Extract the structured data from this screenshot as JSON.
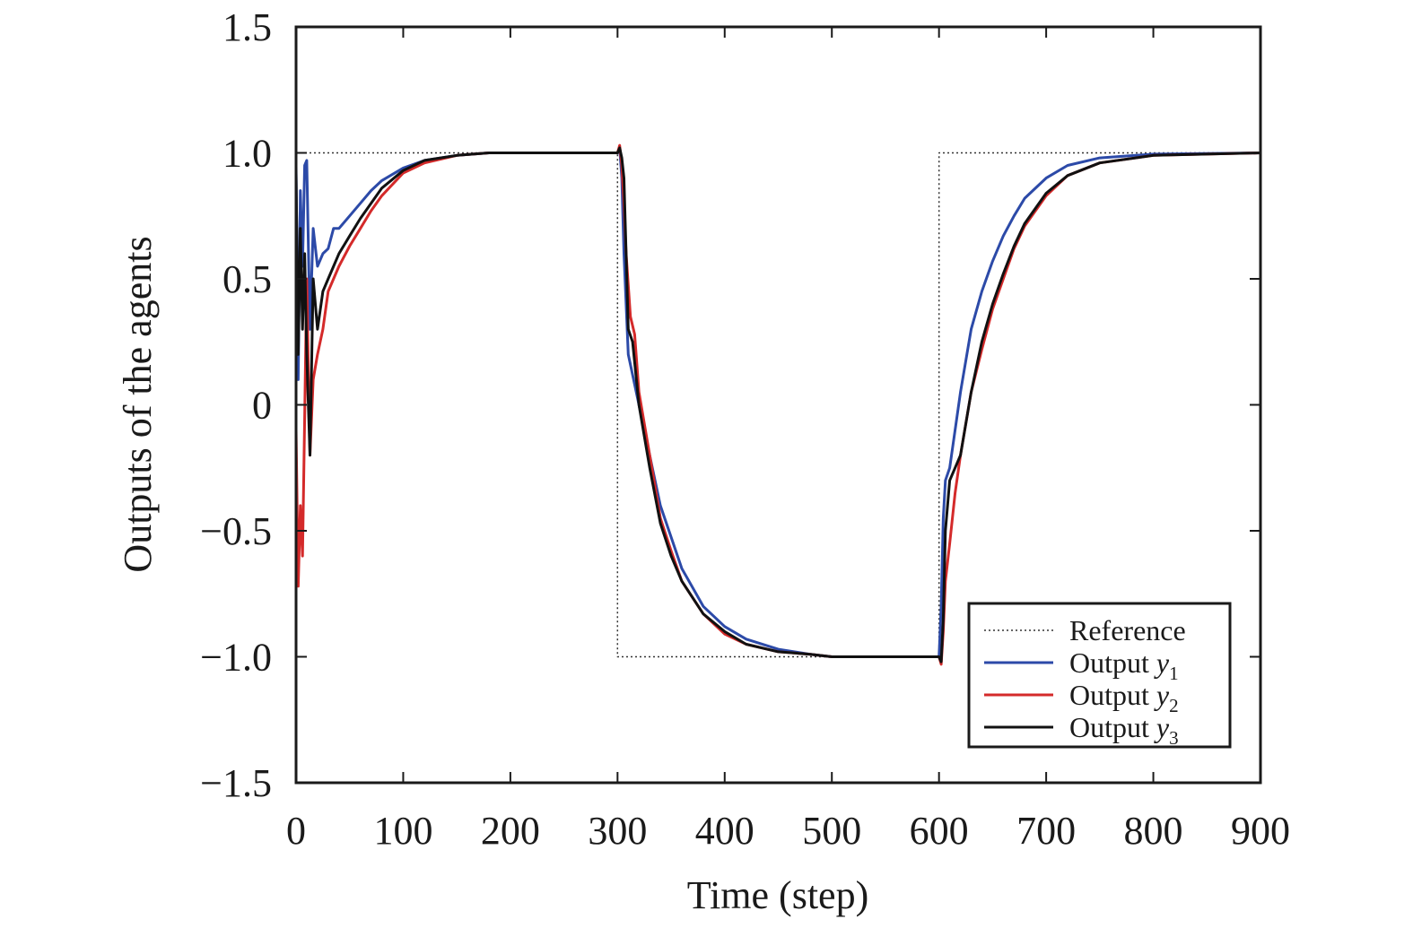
{
  "chart_data": {
    "type": "line",
    "title": "",
    "xlabel": "Time (step)",
    "ylabel": "Outputs of the agents",
    "xlim": [
      0,
      900
    ],
    "ylim": [
      -1.5,
      1.5
    ],
    "x_ticks": [
      0,
      100,
      200,
      300,
      400,
      500,
      600,
      700,
      800,
      900
    ],
    "x_tick_labels": [
      "0",
      "100",
      "200",
      "300",
      "400",
      "500",
      "600",
      "700",
      "800",
      "900"
    ],
    "y_ticks": [
      1.5,
      1.0,
      0.5,
      0,
      -0.5,
      -1.0,
      -1.5
    ],
    "y_tick_labels": [
      "1.5",
      "1.0",
      "0.5",
      "0",
      "−0.5",
      "−1.0",
      "−1.5"
    ],
    "grid": false,
    "legend_position": "bottom-right",
    "series": [
      {
        "name": "Reference",
        "label_parts": [
          "Reference",
          "",
          ""
        ],
        "color": "#333333",
        "style": "dotted",
        "x": [
          0,
          300,
          300,
          600,
          600,
          900
        ],
        "y": [
          1.0,
          1.0,
          -1.0,
          -1.0,
          1.0,
          1.0
        ]
      },
      {
        "name": "Output y1",
        "label_parts": [
          "Output ",
          "y",
          "1"
        ],
        "color": "#2c4aa8",
        "style": "solid",
        "x": [
          0,
          2,
          4,
          6,
          8,
          10,
          13,
          16,
          20,
          25,
          30,
          35,
          40,
          50,
          60,
          70,
          80,
          100,
          120,
          150,
          180,
          200,
          250,
          300,
          302,
          304,
          306,
          310,
          320,
          340,
          360,
          380,
          400,
          420,
          450,
          480,
          500,
          550,
          600,
          602,
          604,
          606,
          610,
          620,
          630,
          640,
          650,
          660,
          670,
          680,
          700,
          720,
          750,
          800,
          900
        ],
        "y": [
          0.95,
          0.1,
          0.85,
          0.55,
          0.95,
          0.97,
          0.3,
          0.7,
          0.55,
          0.6,
          0.62,
          0.7,
          0.7,
          0.75,
          0.8,
          0.85,
          0.89,
          0.94,
          0.97,
          0.99,
          1.0,
          1.0,
          1.0,
          1.0,
          1.02,
          0.9,
          0.6,
          0.2,
          0.0,
          -0.4,
          -0.65,
          -0.8,
          -0.88,
          -0.93,
          -0.97,
          -0.99,
          -1.0,
          -1.0,
          -1.0,
          -0.8,
          -0.45,
          -0.3,
          -0.25,
          0.05,
          0.3,
          0.45,
          0.57,
          0.67,
          0.75,
          0.82,
          0.9,
          0.95,
          0.98,
          0.995,
          1.0
        ]
      },
      {
        "name": "Output y2",
        "label_parts": [
          "Output ",
          "y",
          "2"
        ],
        "color": "#d42a2a",
        "style": "solid",
        "x": [
          0,
          2,
          4,
          6,
          8,
          10,
          13,
          16,
          20,
          25,
          30,
          35,
          40,
          50,
          60,
          70,
          80,
          100,
          120,
          150,
          180,
          200,
          250,
          300,
          302,
          304,
          306,
          308,
          312,
          316,
          320,
          330,
          340,
          350,
          360,
          380,
          400,
          420,
          450,
          480,
          500,
          550,
          600,
          602,
          604,
          606,
          610,
          615,
          620,
          630,
          640,
          650,
          660,
          670,
          680,
          700,
          720,
          750,
          800,
          900
        ],
        "y": [
          -0.1,
          -0.72,
          -0.4,
          -0.6,
          -0.05,
          0.5,
          -0.2,
          0.1,
          0.2,
          0.3,
          0.45,
          0.5,
          0.55,
          0.63,
          0.7,
          0.77,
          0.83,
          0.92,
          0.96,
          0.99,
          1.0,
          1.0,
          1.0,
          1.0,
          1.03,
          0.95,
          0.8,
          0.6,
          0.35,
          0.28,
          0.05,
          -0.2,
          -0.45,
          -0.58,
          -0.7,
          -0.83,
          -0.91,
          -0.95,
          -0.98,
          -0.99,
          -1.0,
          -1.0,
          -1.0,
          -1.03,
          -0.9,
          -0.7,
          -0.55,
          -0.35,
          -0.2,
          0.05,
          0.22,
          0.38,
          0.5,
          0.62,
          0.71,
          0.83,
          0.91,
          0.96,
          0.99,
          1.0
        ]
      },
      {
        "name": "Output y3",
        "label_parts": [
          "Output ",
          "y",
          "3"
        ],
        "color": "#111111",
        "style": "solid",
        "x": [
          0,
          2,
          4,
          6,
          8,
          10,
          13,
          16,
          20,
          25,
          30,
          35,
          40,
          50,
          60,
          70,
          80,
          100,
          120,
          150,
          180,
          200,
          250,
          300,
          302,
          304,
          306,
          308,
          310,
          314,
          320,
          330,
          340,
          350,
          360,
          380,
          400,
          420,
          450,
          480,
          500,
          550,
          600,
          602,
          604,
          606,
          610,
          615,
          620,
          630,
          640,
          650,
          660,
          670,
          680,
          700,
          720,
          750,
          800,
          900
        ],
        "y": [
          0.92,
          0.2,
          0.7,
          0.3,
          0.6,
          0.2,
          -0.2,
          0.5,
          0.3,
          0.45,
          0.5,
          0.55,
          0.6,
          0.67,
          0.74,
          0.8,
          0.86,
          0.93,
          0.97,
          0.99,
          1.0,
          1.0,
          1.0,
          1.0,
          1.02,
          0.98,
          0.9,
          0.6,
          0.3,
          0.25,
          0.0,
          -0.25,
          -0.47,
          -0.6,
          -0.7,
          -0.83,
          -0.9,
          -0.95,
          -0.98,
          -0.99,
          -1.0,
          -1.0,
          -1.0,
          -1.02,
          -0.85,
          -0.5,
          -0.3,
          -0.25,
          -0.2,
          0.05,
          0.25,
          0.4,
          0.52,
          0.63,
          0.72,
          0.84,
          0.91,
          0.96,
          0.99,
          1.0
        ]
      }
    ]
  }
}
